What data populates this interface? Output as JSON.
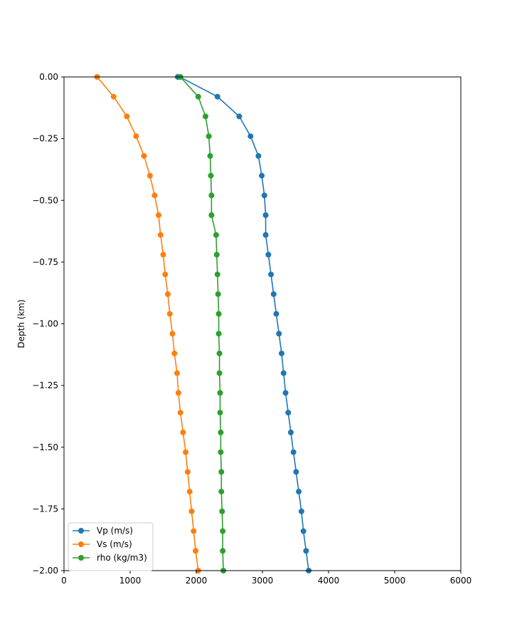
{
  "chart_data": {
    "type": "line",
    "xlabel": "",
    "ylabel": "Depth (km)",
    "xlim": [
      0,
      6000
    ],
    "ylim": [
      -2.0,
      0.0
    ],
    "xticks": [
      "0",
      "1000",
      "2000",
      "3000",
      "4000",
      "5000",
      "6000"
    ],
    "yticks": [
      "0.00",
      "−0.25",
      "−0.50",
      "−0.75",
      "−1.00",
      "−1.25",
      "−1.50",
      "−1.75",
      "−2.00"
    ],
    "grid": false,
    "legend_location": "lower left",
    "depth": [
      0.0,
      -0.08,
      -0.16,
      -0.24,
      -0.32,
      -0.4,
      -0.48,
      -0.56,
      -0.64,
      -0.72,
      -0.8,
      -0.88,
      -0.96,
      -1.04,
      -1.12,
      -1.2,
      -1.28,
      -1.36,
      -1.44,
      -1.52,
      -1.6,
      -1.68,
      -1.76,
      -1.84,
      -1.92,
      -2.0
    ],
    "series": [
      {
        "name": "Vp (m/s)",
        "color": "#1f77b4",
        "depth": [
          0.0,
          0.0,
          -0.08,
          -0.16,
          -0.24,
          -0.32,
          -0.4,
          -0.48,
          -0.56,
          -0.64,
          -0.72,
          -0.8,
          -0.88,
          -0.96,
          -1.04,
          -1.12,
          -1.2,
          -1.28,
          -1.36,
          -1.44,
          -1.52,
          -1.6,
          -1.68,
          -1.76,
          -1.84,
          -1.92,
          -2.0
        ],
        "values": [
          1720,
          1750,
          2320,
          2650,
          2820,
          2940,
          2990,
          3030,
          3050,
          3050,
          3090,
          3130,
          3170,
          3210,
          3250,
          3290,
          3320,
          3350,
          3390,
          3430,
          3470,
          3510,
          3550,
          3590,
          3620,
          3660,
          3700
        ]
      },
      {
        "name": "Vs (m/s)",
        "color": "#ff7f0e",
        "depth": [
          0.0,
          -0.08,
          -0.16,
          -0.24,
          -0.32,
          -0.4,
          -0.48,
          -0.56,
          -0.64,
          -0.72,
          -0.8,
          -0.88,
          -0.96,
          -1.04,
          -1.12,
          -1.2,
          -1.28,
          -1.36,
          -1.44,
          -1.52,
          -1.6,
          -1.68,
          -1.76,
          -1.84,
          -1.92,
          -2.0
        ],
        "values": [
          500,
          750,
          950,
          1090,
          1210,
          1300,
          1370,
          1430,
          1460,
          1500,
          1530,
          1570,
          1600,
          1640,
          1670,
          1710,
          1730,
          1760,
          1800,
          1840,
          1870,
          1900,
          1930,
          1960,
          1990,
          2030
        ]
      },
      {
        "name": "rho (kg/m3)",
        "color": "#2ca02c",
        "depth": [
          0.0,
          -0.08,
          -0.16,
          -0.24,
          -0.32,
          -0.4,
          -0.48,
          -0.56,
          -0.64,
          -0.72,
          -0.8,
          -0.88,
          -0.96,
          -1.04,
          -1.12,
          -1.2,
          -1.28,
          -1.36,
          -1.44,
          -1.52,
          -1.6,
          -1.68,
          -1.76,
          -1.84,
          -1.92,
          -2.0
        ],
        "values": [
          1760,
          2030,
          2140,
          2190,
          2210,
          2220,
          2230,
          2230,
          2300,
          2310,
          2320,
          2330,
          2340,
          2340,
          2350,
          2350,
          2360,
          2360,
          2370,
          2370,
          2380,
          2380,
          2390,
          2400,
          2400,
          2410
        ]
      }
    ]
  }
}
